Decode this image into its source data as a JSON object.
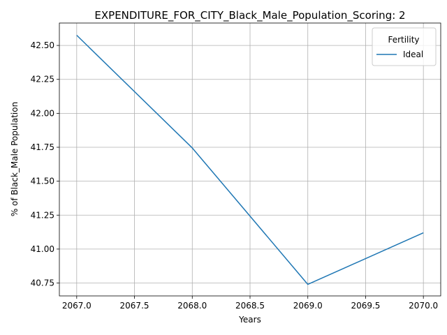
{
  "chart_data": {
    "type": "line",
    "title": "EXPENDITURE_FOR_CITY_Black_Male_Population_Scoring: 2",
    "xlabel": "Years",
    "ylabel": "% of Black_Male Population",
    "xlim": [
      2066.85,
      2070.15
    ],
    "ylim": [
      40.655,
      42.665
    ],
    "x_ticks": [
      "2067.0",
      "2067.5",
      "2068.0",
      "2068.5",
      "2069.0",
      "2069.5",
      "2070.0"
    ],
    "y_ticks": [
      "40.75",
      "41.00",
      "41.25",
      "41.50",
      "41.75",
      "42.00",
      "42.25",
      "42.50"
    ],
    "grid": true,
    "legend": {
      "title": "Fertility",
      "position": "top-right"
    },
    "series": [
      {
        "name": "Ideal",
        "color": "#1f77b4",
        "x": [
          2067,
          2068,
          2069,
          2070
        ],
        "y": [
          42.575,
          41.745,
          40.74,
          41.12
        ]
      }
    ]
  }
}
